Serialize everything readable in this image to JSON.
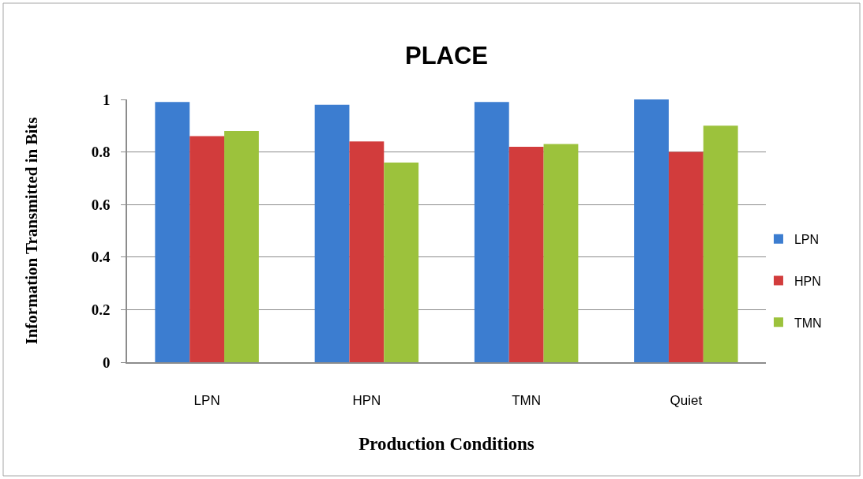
{
  "chart_data": {
    "type": "bar",
    "title": "PLACE",
    "xlabel": "Production Conditions",
    "ylabel": "Information Transmitted in Bits",
    "categories": [
      "LPN",
      "HPN",
      "TMN",
      "Quiet"
    ],
    "series": [
      {
        "name": "LPN",
        "color": "#3c7dd0",
        "values": [
          0.99,
          0.98,
          0.99,
          1.0
        ]
      },
      {
        "name": "HPN",
        "color": "#d23c3c",
        "values": [
          0.86,
          0.84,
          0.82,
          0.8
        ]
      },
      {
        "name": "TMN",
        "color": "#9cc23c",
        "values": [
          0.88,
          0.76,
          0.83,
          0.9
        ]
      }
    ],
    "ylim": [
      0,
      1
    ],
    "yticks": [
      0,
      0.2,
      0.4,
      0.6,
      0.8,
      1
    ],
    "grid": "y",
    "legend": "right"
  }
}
